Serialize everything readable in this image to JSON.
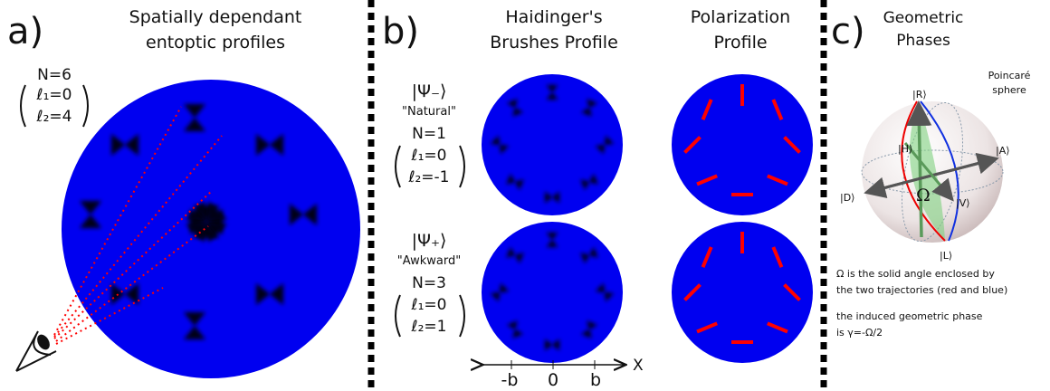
{
  "panel_a": {
    "label": "a)",
    "title": [
      "Spatially dependant",
      "entoptic profiles"
    ],
    "params": {
      "n": "N=6",
      "l1": "ℓ₁=0",
      "l2": "ℓ₂=4"
    }
  },
  "panel_b": {
    "label": "b)",
    "columns": [
      [
        "Haidinger's",
        "Brushes Profile"
      ],
      [
        "Polarization",
        "Profile"
      ]
    ],
    "states": [
      {
        "ket": "|Ψ₋⟩",
        "name": "\"Natural\"",
        "n": "N=1",
        "l1": "ℓ₁=0",
        "l2": "ℓ₂=-1"
      },
      {
        "ket": "|Ψ₊⟩",
        "name": "\"Awkward\"",
        "n": "N=3",
        "l1": "ℓ₁=0",
        "l2": "ℓ₂=1"
      }
    ],
    "axis": {
      "ticks": [
        "-b",
        "0",
        "b"
      ],
      "label": "X"
    }
  },
  "panel_c": {
    "label": "c)",
    "title": [
      "Geometric",
      "Phases"
    ],
    "sphere_title": [
      "Poincaré",
      "sphere"
    ],
    "states": {
      "R": "|R⟩",
      "H": "|H⟩",
      "A": "|A⟩",
      "D": "|D⟩",
      "V": "|V⟩",
      "L": "|L⟩"
    },
    "omega": "Ω",
    "caption": [
      "Ω is the solid angle enclosed by",
      "the two trajectories (red and blue)",
      "the induced geometric phase",
      "is γ=-Ω/2"
    ]
  }
}
